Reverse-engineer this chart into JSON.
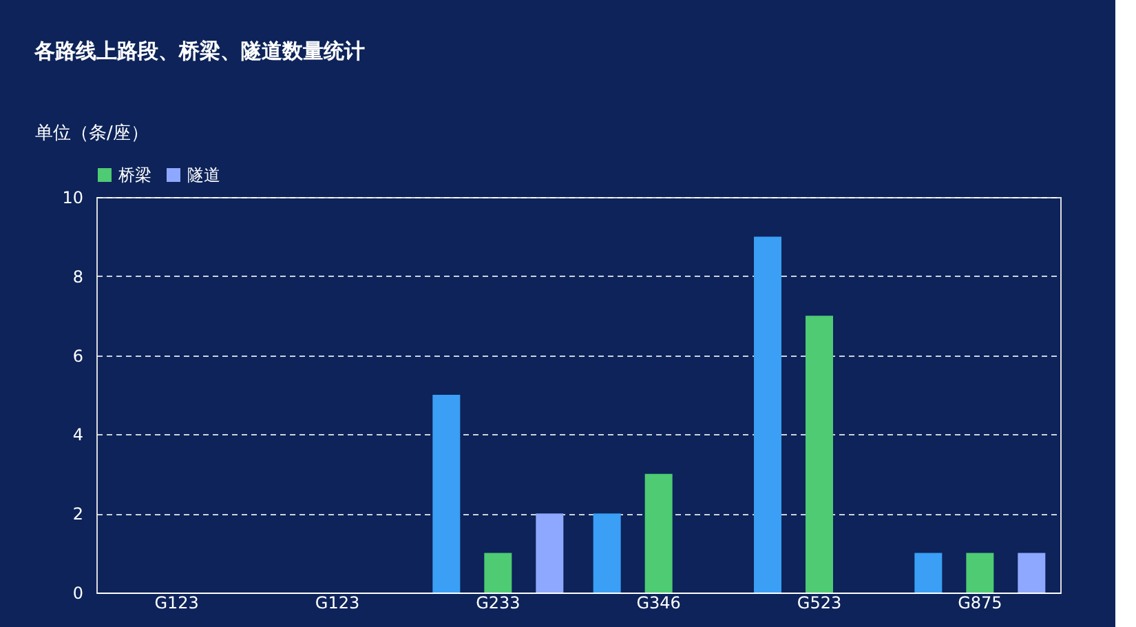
{
  "chart_data": {
    "type": "bar",
    "title": "各路线上路段、桥梁、隧道数量统计",
    "ylabel": "单位（条/座）",
    "categories": [
      "G123",
      "G123",
      "G233",
      "G346",
      "G523",
      "G875"
    ],
    "series": [
      {
        "color": "#3a9ff5",
        "values": [
          0,
          0,
          5,
          2,
          9,
          1
        ]
      },
      {
        "name": "桥梁",
        "color": "#4ecb73",
        "values": [
          0,
          0,
          1,
          3,
          7,
          1
        ]
      },
      {
        "name": "隧道",
        "color": "#8ea8ff",
        "values": [
          0,
          0,
          2,
          0,
          0,
          1
        ]
      }
    ],
    "ylim": [
      0,
      10
    ],
    "yticks": [
      0,
      2,
      4,
      6,
      8,
      10
    ],
    "grid": "y",
    "legend": "top"
  }
}
